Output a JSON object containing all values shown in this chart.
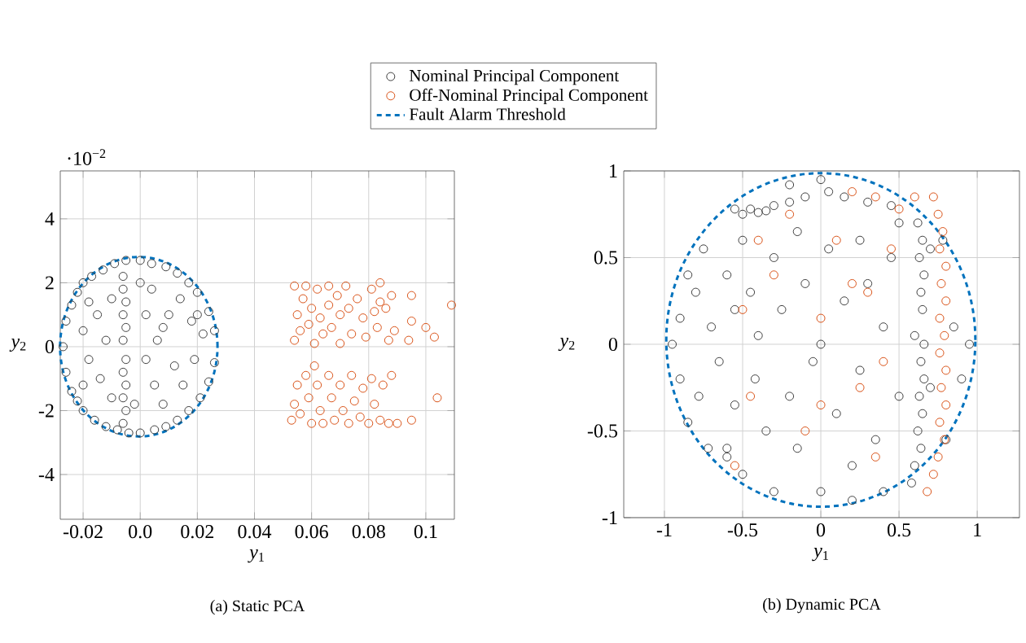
{
  "chart_data": [
    {
      "type": "scatter",
      "title": "(a) Static PCA",
      "xlabel": "*y*$_{1}$",
      "ylabel": "*y*$_{2}$",
      "annotations": [
        "·10$^{−2}$",
        "Fault Alarm Threshold"
      ],
      "legend": "top",
      "grid": true,
      "marker": "circle",
      "xlim": [
        -0.028,
        0.11
      ],
      "ylim": [
        -5.4,
        5.5
      ],
      "xticks": [
        -0.02,
        {
          "value": 0,
          "label": "0.0"
        },
        0.02,
        0.04,
        0.06,
        0.08,
        0.1
      ],
      "yticks": [
        -4,
        -2,
        0,
        2,
        4
      ],
      "series": [
        {
          "name": "Nominal Principal Component",
          "color": "#404040",
          "x": [
            -0.027,
            -0.026,
            -0.026,
            -0.024,
            -0.024,
            -0.022,
            -0.022,
            -0.02,
            -0.02,
            -0.017,
            -0.016,
            -0.013,
            -0.012,
            -0.009,
            -0.008,
            -0.005,
            -0.004,
            0.0,
            0.0,
            0.004,
            0.005,
            0.009,
            0.009,
            0.013,
            0.013,
            0.017,
            0.017,
            0.02,
            0.021,
            0.024,
            0.024,
            0.026,
            0.026,
            0.022,
            -0.006,
            -0.006,
            -0.005,
            -0.006,
            -0.005,
            -0.006,
            -0.005,
            -0.006,
            -0.005,
            -0.006,
            -0.005,
            -0.006,
            -0.02,
            -0.018,
            -0.015,
            -0.014,
            -0.012,
            -0.01,
            -0.01,
            0.002,
            0.004,
            0.005,
            0.006,
            0.008,
            0.01,
            0.012,
            0.014,
            0.015,
            0.018,
            0.019,
            0.02,
            0.002,
            0.0,
            -0.002,
            0.008,
            -0.018,
            -0.02
          ],
          "values": [
            0.0,
            0.8,
            -0.8,
            1.3,
            -1.4,
            1.7,
            -1.7,
            2.0,
            -2.0,
            2.2,
            -2.3,
            2.4,
            -2.5,
            2.6,
            -2.6,
            2.7,
            -2.7,
            2.7,
            -2.7,
            2.6,
            -2.6,
            2.5,
            -2.5,
            2.3,
            -2.3,
            2.0,
            -2.0,
            1.7,
            -1.6,
            1.1,
            -1.1,
            0.5,
            -0.5,
            0.4,
            2.2,
            1.8,
            1.4,
            1.0,
            0.6,
            0.2,
            -0.4,
            -0.8,
            -1.2,
            -1.6,
            -2.0,
            -2.4,
            0.5,
            -0.4,
            1.0,
            -1.0,
            0.2,
            1.5,
            -1.6,
            1.0,
            1.8,
            -1.2,
            0.2,
            -1.8,
            1.0,
            -0.6,
            1.5,
            -1.2,
            0.8,
            -0.4,
            1.0,
            -0.4,
            2.0,
            -1.8,
            0.6,
            1.4,
            -1.2
          ]
        },
        {
          "name": "Off-Nominal Principal Component",
          "color": "#d95319",
          "x": [
            0.054,
            0.057,
            0.055,
            0.056,
            0.054,
            0.058,
            0.06,
            0.059,
            0.061,
            0.062,
            0.063,
            0.064,
            0.066,
            0.066,
            0.067,
            0.069,
            0.07,
            0.07,
            0.072,
            0.073,
            0.074,
            0.076,
            0.078,
            0.079,
            0.081,
            0.082,
            0.083,
            0.084,
            0.086,
            0.087,
            0.088,
            0.089,
            0.095,
            0.095,
            0.094,
            0.1,
            0.103,
            0.109,
            0.084,
            0.053,
            0.054,
            0.055,
            0.056,
            0.058,
            0.059,
            0.06,
            0.062,
            0.063,
            0.064,
            0.066,
            0.067,
            0.068,
            0.07,
            0.071,
            0.073,
            0.074,
            0.075,
            0.077,
            0.078,
            0.08,
            0.081,
            0.082,
            0.084,
            0.085,
            0.087,
            0.088,
            0.09,
            0.095,
            0.104,
            0.061
          ],
          "values": [
            1.9,
            1.5,
            1.0,
            0.5,
            0.2,
            1.9,
            1.2,
            0.7,
            0.1,
            1.8,
            0.9,
            0.4,
            1.9,
            1.3,
            0.6,
            1.6,
            1.0,
            0.1,
            1.9,
            1.2,
            0.4,
            1.5,
            0.9,
            0.3,
            1.8,
            1.1,
            0.6,
            2.0,
            1.2,
            0.2,
            1.6,
            0.5,
            1.6,
            0.8,
            0.2,
            0.6,
            0.3,
            1.3,
            1.4,
            -2.3,
            -1.8,
            -1.2,
            -2.1,
            -0.9,
            -1.6,
            -2.4,
            -1.2,
            -2.0,
            -2.4,
            -0.9,
            -1.6,
            -2.3,
            -1.2,
            -2.0,
            -2.4,
            -0.9,
            -1.7,
            -2.2,
            -1.3,
            -2.4,
            -1.0,
            -1.8,
            -2.3,
            -1.2,
            -2.4,
            -0.9,
            -2.4,
            -2.3,
            -1.6,
            -0.6
          ]
        }
      ]
    },
    {
      "type": "scatter",
      "title": "(b) Dynamic PCA",
      "xlabel": "*y*$_{1}$",
      "ylabel": "*y*$_{2}$",
      "grid": true,
      "marker": "circle",
      "xlim": [
        -1.26,
        1.27
      ],
      "ylim": [
        -1,
        1
      ],
      "xticks": [
        -1,
        -0.5,
        0,
        0.5,
        1
      ],
      "yticks": [
        -1,
        -0.5,
        0,
        0.5,
        1
      ],
      "series": [
        {
          "color": "#404040",
          "x": [
            0.62,
            0.65,
            0.63,
            0.66,
            0.64,
            0.65,
            0.6,
            0.66,
            0.64,
            0.66,
            0.63,
            0.65,
            0.62,
            0.64,
            0.6,
            0.58,
            0.7,
            0.7,
            -0.55,
            -0.5,
            -0.45,
            -0.4,
            -0.35,
            -0.3,
            -0.2,
            -0.1,
            0.0,
            0.05,
            0.15,
            0.3,
            0.45,
            -0.95,
            -0.9,
            -0.9,
            -0.85,
            -0.85,
            -0.8,
            -0.78,
            -0.75,
            -0.72,
            -0.7,
            -0.65,
            -0.6,
            -0.6,
            -0.55,
            -0.55,
            -0.5,
            -0.5,
            -0.45,
            -0.42,
            -0.4,
            -0.35,
            -0.3,
            -0.3,
            -0.25,
            -0.2,
            -0.15,
            -0.15,
            -0.1,
            -0.05,
            0.0,
            0.0,
            0.05,
            0.1,
            0.15,
            0.2,
            0.25,
            0.25,
            0.3,
            0.35,
            0.4,
            0.4,
            0.45,
            0.5,
            0.5,
            0.85,
            0.9,
            0.8,
            0.78,
            0.95,
            -0.2,
            0.2,
            -0.6
          ],
          "values": [
            0.7,
            0.6,
            0.5,
            0.4,
            0.3,
            0.2,
            0.05,
            0.0,
            -0.1,
            -0.2,
            -0.3,
            -0.4,
            -0.5,
            -0.6,
            -0.7,
            -0.8,
            0.55,
            -0.25,
            0.78,
            0.75,
            0.78,
            0.76,
            0.77,
            0.8,
            0.82,
            0.85,
            0.95,
            0.88,
            0.85,
            0.82,
            0.8,
            0.0,
            0.15,
            -0.2,
            0.4,
            -0.45,
            0.3,
            -0.3,
            0.55,
            -0.6,
            0.1,
            -0.1,
            0.4,
            -0.65,
            0.2,
            -0.35,
            0.6,
            -0.75,
            0.3,
            -0.2,
            0.05,
            -0.5,
            0.5,
            -0.85,
            0.2,
            -0.3,
            0.65,
            -0.6,
            0.35,
            -0.1,
            0.0,
            -0.85,
            0.55,
            -0.4,
            0.25,
            -0.7,
            0.6,
            -0.15,
            0.35,
            -0.55,
            0.1,
            -0.85,
            0.5,
            -0.3,
            0.7,
            0.1,
            -0.2,
            -0.55,
            0.6,
            0.0,
            0.92,
            -0.9,
            -0.6
          ]
        },
        {
          "color": "#d95319",
          "x": [
            0.72,
            0.75,
            0.78,
            0.76,
            0.8,
            0.77,
            0.8,
            0.76,
            0.79,
            0.76,
            0.8,
            0.77,
            0.8,
            0.76,
            0.79,
            0.75,
            0.72,
            0.68,
            0.6,
            0.5,
            0.35,
            0.2,
            -0.2,
            -0.4,
            -0.5,
            -0.45,
            -0.55,
            -0.3,
            0.0,
            0.0,
            0.1,
            0.2,
            0.3,
            0.4,
            0.35,
            0.25,
            -0.1,
            0.45
          ],
          "values": [
            0.85,
            0.75,
            0.65,
            0.55,
            0.45,
            0.35,
            0.25,
            0.15,
            0.05,
            -0.05,
            -0.15,
            -0.25,
            -0.35,
            -0.45,
            -0.55,
            -0.65,
            -0.75,
            -0.85,
            0.85,
            0.78,
            0.85,
            0.88,
            0.75,
            0.6,
            0.2,
            -0.3,
            -0.7,
            0.4,
            0.15,
            -0.35,
            0.6,
            0.35,
            0.3,
            -0.1,
            -0.65,
            -0.25,
            -0.5,
            0.55
          ]
        }
      ]
    }
  ]
}
